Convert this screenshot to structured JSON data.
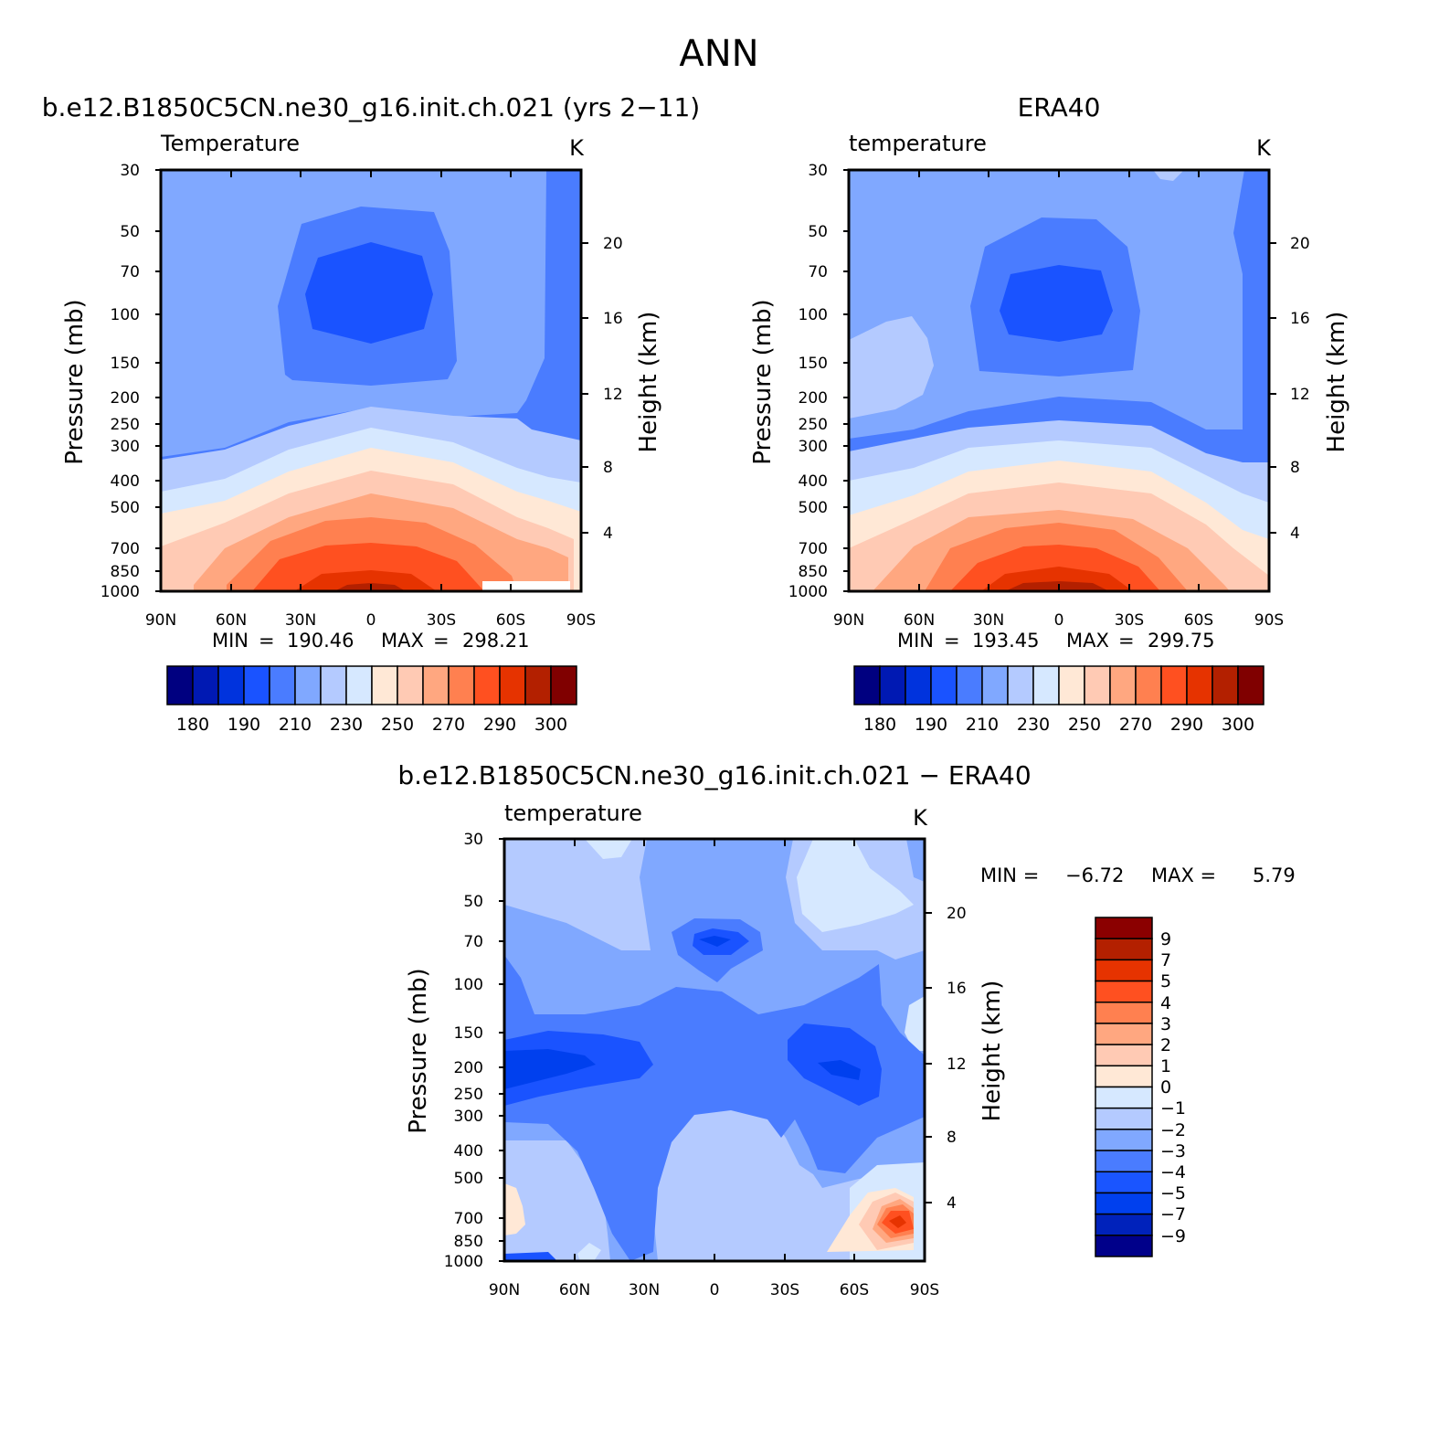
{
  "figure_title": "ANN",
  "colors": {
    "abs_scale": [
      "#000080",
      "#0019b3",
      "#0033dd",
      "#1a53ff",
      "#4a7cff",
      "#80a8ff",
      "#b4caff",
      "#d6e8ff",
      "#ffe8d6",
      "#ffcab4",
      "#ffa780",
      "#ff8050",
      "#ff5020",
      "#e63300",
      "#b32000",
      "#800000"
    ],
    "diff_scale": [
      "#00008a",
      "#0022bb",
      "#0040ee",
      "#1a55ff",
      "#4a7cff",
      "#80a8ff",
      "#b4caff",
      "#d6e8ff",
      "#ffe8d6",
      "#ffcab4",
      "#ffa780",
      "#ff8050",
      "#ff5020",
      "#e63300",
      "#b32000",
      "#8b0000"
    ]
  },
  "chart_data": [
    {
      "id": "model",
      "type": "contour",
      "panel_title": "b.e12.B1850C5CN.ne30_g16.init.ch.021 (yrs 2−11)",
      "variable": "Temperature",
      "units": "K",
      "ylabel": "Pressure (mb)",
      "ylabel2": "Height (km)",
      "x_ticks": [
        "90N",
        "60N",
        "30N",
        "0",
        "30S",
        "60S",
        "90S"
      ],
      "y_ticks": [
        "30",
        "50",
        "70",
        "100",
        "150",
        "200",
        "250",
        "300",
        "400",
        "500",
        "700",
        "850",
        "1000"
      ],
      "y2_ticks": [
        "20",
        "16",
        "12",
        "8",
        "4"
      ],
      "min_label": "MIN",
      "min": "190.46",
      "max_label": "MAX",
      "max": "298.21",
      "colorbar_labels": [
        "180",
        "190",
        "210",
        "230",
        "250",
        "270",
        "290",
        "300"
      ]
    },
    {
      "id": "obs",
      "type": "contour",
      "panel_title": "ERA40",
      "variable": "temperature",
      "units": "K",
      "ylabel": "Pressure (mb)",
      "ylabel2": "Height (km)",
      "x_ticks": [
        "90N",
        "60N",
        "30N",
        "0",
        "30S",
        "60S",
        "90S"
      ],
      "y_ticks": [
        "30",
        "50",
        "70",
        "100",
        "150",
        "200",
        "250",
        "300",
        "400",
        "500",
        "700",
        "850",
        "1000"
      ],
      "y2_ticks": [
        "20",
        "16",
        "12",
        "8",
        "4"
      ],
      "min_label": "MIN",
      "min": "193.45",
      "max_label": "MAX",
      "max": "299.75",
      "colorbar_labels": [
        "180",
        "190",
        "210",
        "230",
        "250",
        "270",
        "290",
        "300"
      ]
    },
    {
      "id": "diff",
      "type": "contour",
      "panel_title": "b.e12.B1850C5CN.ne30_g16.init.ch.021 − ERA40",
      "variable": "temperature",
      "units": "K",
      "ylabel": "Pressure (mb)",
      "ylabel2": "Height (km)",
      "x_ticks": [
        "90N",
        "60N",
        "30N",
        "0",
        "30S",
        "60S",
        "90S"
      ],
      "y_ticks": [
        "30",
        "50",
        "70",
        "100",
        "150",
        "200",
        "250",
        "300",
        "400",
        "500",
        "700",
        "850",
        "1000"
      ],
      "y2_ticks": [
        "20",
        "16",
        "12",
        "8",
        "4"
      ],
      "min_label": "MIN =",
      "min": "−6.72",
      "max_label": "MAX =",
      "max": "5.79",
      "colorbar_labels": [
        "9",
        "7",
        "5",
        "4",
        "3",
        "2",
        "1",
        "0",
        "−1",
        "−2",
        "−3",
        "−4",
        "−5",
        "−7",
        "−9"
      ]
    }
  ]
}
